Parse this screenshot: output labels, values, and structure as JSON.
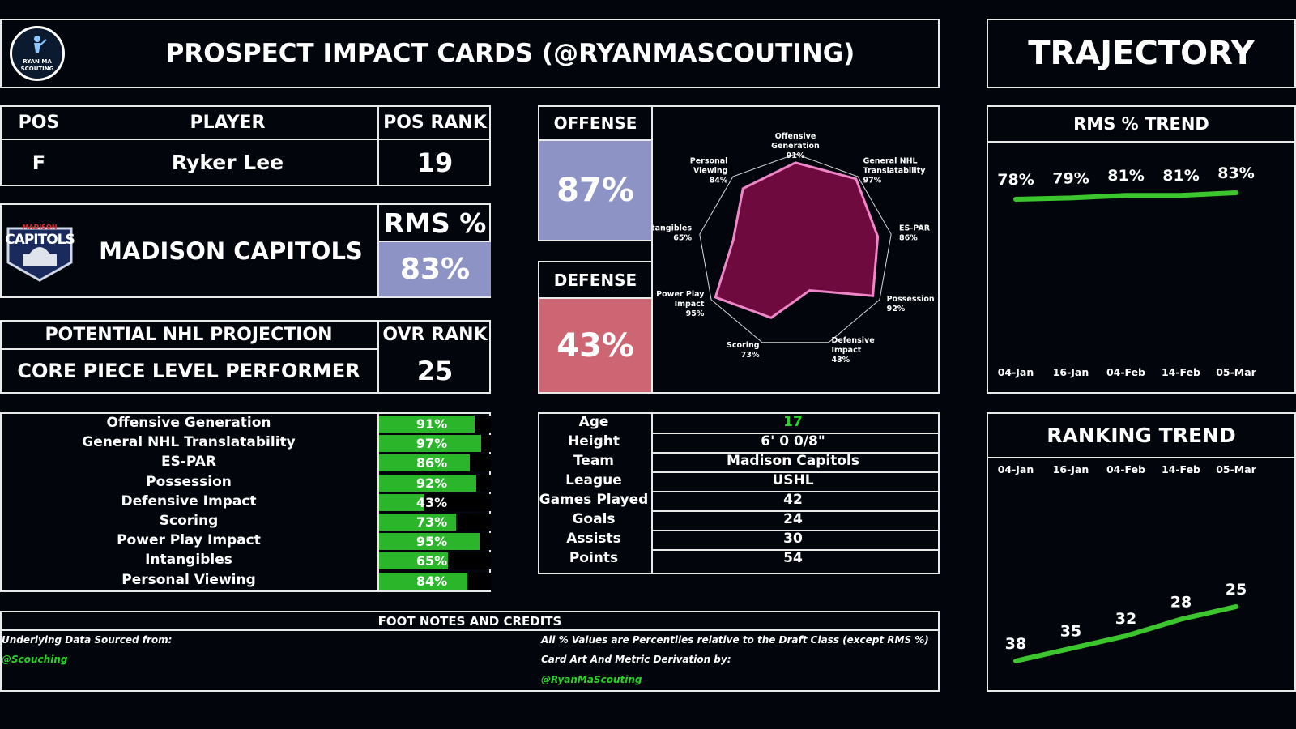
{
  "header": {
    "logo_text_1": "RYAN MA",
    "logo_text_2": "SCOUTING",
    "title": "PROSPECT IMPACT CARDS (@RYANMASCOUTING)",
    "trajectory": "TRAJECTORY"
  },
  "player": {
    "pos_label": "POS",
    "player_label": "PLAYER",
    "pos_rank_label": "POS RANK",
    "pos": "F",
    "name": "Ryker Lee",
    "pos_rank": "19",
    "team_logo_text": "CAPITOLS",
    "team_logo_small": "MADISON",
    "team": "MADISON CAPITOLS",
    "rms_label": "RMS %",
    "rms_value": "83%",
    "projection_label": "POTENTIAL NHL PROJECTION",
    "projection_value": "CORE PIECE LEVEL PERFORMER",
    "ovr_rank_label": "OVR RANK",
    "ovr_rank": "25"
  },
  "colors": {
    "offense": "#8e93c6",
    "defense": "#cd6672",
    "rms": "#8e93c6",
    "radar_fill": "#6e0a3e",
    "radar_stroke": "#ee86c8",
    "bar_green": "#2bb52b",
    "trend_green": "#3bc62e",
    "accent_green": "#28d228"
  },
  "offense": {
    "label": "OFFENSE",
    "value": "87%"
  },
  "defense": {
    "label": "DEFENSE",
    "value": "43%"
  },
  "metrics": [
    {
      "name": "Offensive Generation",
      "value": 91,
      "text": "91%"
    },
    {
      "name": "General NHL Translatability",
      "value": 97,
      "text": "97%"
    },
    {
      "name": "ES-PAR",
      "value": 86,
      "text": "86%"
    },
    {
      "name": "Possession",
      "value": 92,
      "text": "92%"
    },
    {
      "name": "Defensive Impact",
      "value": 43,
      "text": "43%"
    },
    {
      "name": "Scoring",
      "value": 73,
      "text": "73%"
    },
    {
      "name": "Power Play Impact",
      "value": 95,
      "text": "95%"
    },
    {
      "name": "Intangibles",
      "value": 65,
      "text": "65%"
    },
    {
      "name": "Personal Viewing",
      "value": 84,
      "text": "84%"
    }
  ],
  "info": [
    {
      "label": "Age",
      "value": "17"
    },
    {
      "label": "Height",
      "value": "6' 0 0/8\""
    },
    {
      "label": "Team",
      "value": "Madison Capitols"
    },
    {
      "label": "League",
      "value": "USHL"
    },
    {
      "label": "Games Played",
      "value": "42"
    },
    {
      "label": "Goals",
      "value": "24"
    },
    {
      "label": "Assists",
      "value": "30"
    },
    {
      "label": "Points",
      "value": "54"
    }
  ],
  "footer": {
    "title": "FOOT NOTES AND CREDITS",
    "source_label": "Underlying Data Sourced from:",
    "source_handle": "@Scouching",
    "note": "All % Values are Percentiles relative to the Draft Class (except RMS %)",
    "credit_label": "Card Art And Metric Derivation by:",
    "credit_handle": "@RyanMaScouting"
  },
  "chart_data": [
    {
      "type": "radar",
      "axes": [
        {
          "line1": "Offensive",
          "line2": "Generation",
          "value": 91,
          "text": "91%"
        },
        {
          "line1": "General NHL",
          "line2": "Translatability",
          "value": 97,
          "text": "97%"
        },
        {
          "line1": "ES-PAR",
          "line2": "",
          "value": 86,
          "text": "86%"
        },
        {
          "line1": "Possession",
          "line2": "",
          "value": 92,
          "text": "92%"
        },
        {
          "line1": "Defensive",
          "line2": "Impact",
          "value": 43,
          "text": "43%"
        },
        {
          "line1": "Scoring",
          "line2": "",
          "value": 73,
          "text": "73%"
        },
        {
          "line1": "Power Play",
          "line2": "Impact",
          "value": 95,
          "text": "95%"
        },
        {
          "line1": "Intangibles",
          "line2": "",
          "value": 65,
          "text": "65%"
        },
        {
          "line1": "Personal",
          "line2": "Viewing",
          "value": 84,
          "text": "84%"
        }
      ],
      "range": [
        0,
        100
      ]
    },
    {
      "type": "line",
      "title": "RMS % TREND",
      "x": [
        "04-Jan",
        "16-Jan",
        "04-Feb",
        "14-Feb",
        "05-Mar"
      ],
      "values": [
        78,
        79,
        81,
        81,
        83
      ],
      "labels": [
        "78%",
        "79%",
        "81%",
        "81%",
        "83%"
      ]
    },
    {
      "type": "line",
      "title": "RANKING TREND",
      "x": [
        "04-Jan",
        "16-Jan",
        "04-Feb",
        "14-Feb",
        "05-Mar"
      ],
      "values": [
        38,
        35,
        32,
        28,
        25
      ],
      "labels": [
        "38",
        "35",
        "32",
        "28",
        "25"
      ]
    }
  ]
}
